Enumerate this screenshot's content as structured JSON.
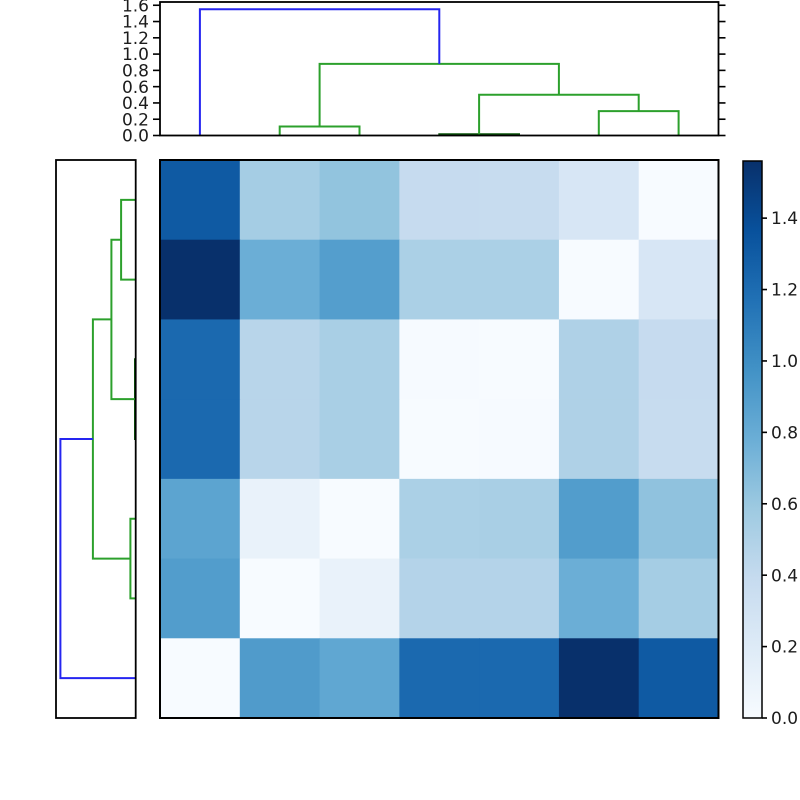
{
  "figure": {
    "type": "hierarchical-clustering-heatmap",
    "background": "#ffffff",
    "colors": {
      "link_blue": "#2525f0",
      "link_green": "#2ca02c",
      "link_dark_green": "#0a550a",
      "frame": "#000000",
      "tick_label": "#1c1c1c"
    }
  },
  "chart_data": {
    "type": "heatmap",
    "subtype": "clustermap-with-dendrograms",
    "n_rows": 7,
    "n_cols": 7,
    "matrix": [
      [
        1.31,
        0.55,
        0.63,
        0.39,
        0.38,
        0.25,
        0.0
      ],
      [
        1.56,
        0.78,
        0.89,
        0.52,
        0.52,
        0.0,
        0.25
      ],
      [
        1.22,
        0.46,
        0.53,
        0.01,
        0.0,
        0.5,
        0.39
      ],
      [
        1.22,
        0.46,
        0.53,
        0.0,
        0.01,
        0.5,
        0.38
      ],
      [
        0.85,
        0.11,
        0.0,
        0.52,
        0.53,
        0.9,
        0.64
      ],
      [
        0.9,
        0.0,
        0.11,
        0.48,
        0.48,
        0.78,
        0.55
      ],
      [
        0.0,
        0.91,
        0.83,
        1.22,
        1.22,
        1.56,
        1.31
      ]
    ],
    "colormap": "Blues",
    "vmin": 0.0,
    "vmax": 1.56,
    "colormap_anchors": [
      {
        "t": 0.0,
        "hex": "#f7fbff"
      },
      {
        "t": 0.125,
        "hex": "#deebf7"
      },
      {
        "t": 0.25,
        "hex": "#c6dbef"
      },
      {
        "t": 0.375,
        "hex": "#9ecae1"
      },
      {
        "t": 0.5,
        "hex": "#6baed6"
      },
      {
        "t": 0.625,
        "hex": "#4292c6"
      },
      {
        "t": 0.75,
        "hex": "#2171b5"
      },
      {
        "t": 0.875,
        "hex": "#08519c"
      },
      {
        "t": 1.0,
        "hex": "#08306b"
      }
    ],
    "colorbar": {
      "ticks": [
        {
          "v": 0.0,
          "label": "0.0"
        },
        {
          "v": 0.2,
          "label": "0.2"
        },
        {
          "v": 0.4,
          "label": "0.4"
        },
        {
          "v": 0.6,
          "label": "0.6"
        },
        {
          "v": 0.8,
          "label": "0.8"
        },
        {
          "v": 1.0,
          "label": "1.0"
        },
        {
          "v": 1.2,
          "label": "1.2"
        },
        {
          "v": 1.4,
          "label": "1.4"
        }
      ]
    },
    "top_dendrogram": {
      "axis_max": 1.64,
      "ticks": [
        {
          "v": 0.0,
          "label": "0.0"
        },
        {
          "v": 0.2,
          "label": "0.2"
        },
        {
          "v": 0.4,
          "label": "0.4"
        },
        {
          "v": 0.6,
          "label": "0.6"
        },
        {
          "v": 0.8,
          "label": "0.8"
        },
        {
          "v": 1.0,
          "label": "1.0"
        },
        {
          "v": 1.2,
          "label": "1.2"
        },
        {
          "v": 1.4,
          "label": "1.4"
        },
        {
          "v": 1.6,
          "label": "1.6"
        }
      ],
      "links": [
        {
          "a": 3.5,
          "b": 4.5,
          "h": 0.015,
          "ha": 0,
          "hb": 0,
          "color": "dark_green"
        },
        {
          "a": 5.5,
          "b": 6.5,
          "h": 0.3,
          "ha": 0,
          "hb": 0,
          "color": "green"
        },
        {
          "a": 4.0,
          "b": 6.0,
          "h": 0.5,
          "ha": 0.015,
          "hb": 0.3,
          "color": "green"
        },
        {
          "a": 1.5,
          "b": 2.5,
          "h": 0.11,
          "ha": 0,
          "hb": 0,
          "color": "green"
        },
        {
          "a": 2.0,
          "b": 5.0,
          "h": 0.88,
          "ha": 0.11,
          "hb": 0.5,
          "color": "green"
        },
        {
          "a": 0.5,
          "b": 3.5,
          "h": 1.55,
          "ha": 0,
          "hb": 0.88,
          "color": "blue"
        }
      ]
    },
    "row_dendrogram": {
      "axis_max": 1.64,
      "links": [
        {
          "a": 0.5,
          "b": 1.5,
          "h": 0.3,
          "ha": 0,
          "hb": 0,
          "color": "green"
        },
        {
          "a": 2.5,
          "b": 3.5,
          "h": 0.015,
          "ha": 0,
          "hb": 0,
          "color": "dark_green"
        },
        {
          "a": 1.0,
          "b": 3.0,
          "h": 0.5,
          "ha": 0.3,
          "hb": 0.015,
          "color": "green"
        },
        {
          "a": 4.5,
          "b": 5.5,
          "h": 0.11,
          "ha": 0,
          "hb": 0,
          "color": "green"
        },
        {
          "a": 2.0,
          "b": 5.0,
          "h": 0.88,
          "ha": 0.5,
          "hb": 0.11,
          "color": "green"
        },
        {
          "a": 3.5,
          "b": 6.5,
          "h": 1.55,
          "ha": 0.88,
          "hb": 0,
          "color": "blue"
        }
      ]
    }
  }
}
